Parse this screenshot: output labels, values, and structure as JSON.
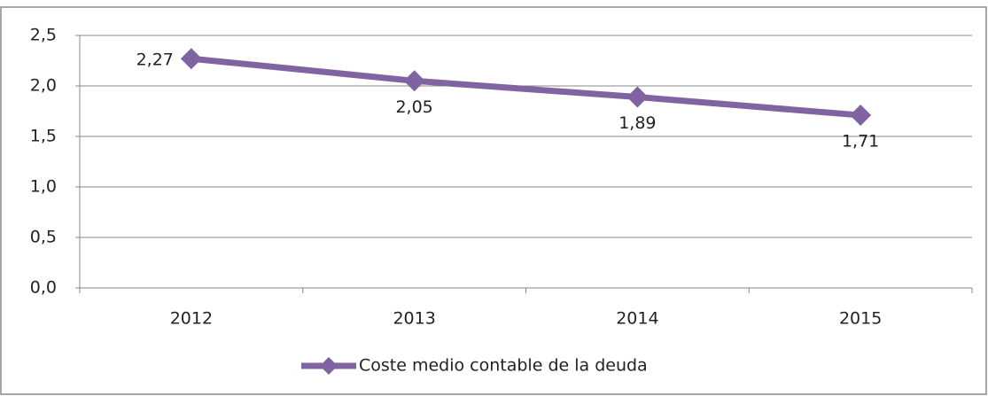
{
  "chart_data": {
    "type": "line",
    "categories": [
      "2012",
      "2013",
      "2014",
      "2015"
    ],
    "series": [
      {
        "name": "Coste medio contable de la deuda",
        "color": "#8064a2",
        "values": [
          2.27,
          2.05,
          1.89,
          1.71
        ],
        "value_labels": [
          "2,27",
          "2,05",
          "1,89",
          "1,71"
        ]
      }
    ],
    "ylim": [
      0,
      2.5
    ],
    "yticks": [
      {
        "value": 0,
        "label": "0,0"
      },
      {
        "value": 0.5,
        "label": "0,5"
      },
      {
        "value": 1,
        "label": "1,0"
      },
      {
        "value": 1.5,
        "label": "1,5"
      },
      {
        "value": 2,
        "label": "2,0"
      },
      {
        "value": 2.5,
        "label": "2,5"
      }
    ],
    "grid": true
  }
}
